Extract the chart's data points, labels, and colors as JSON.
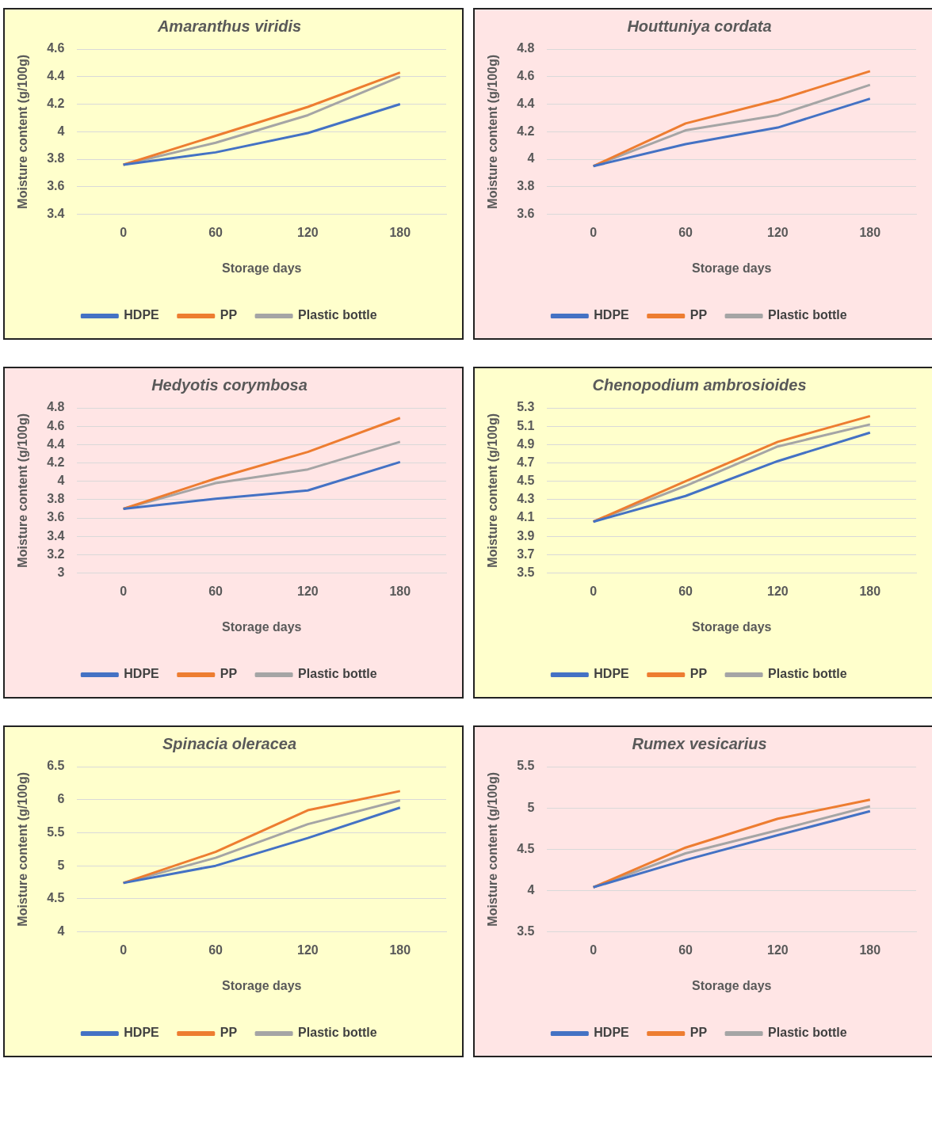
{
  "chart_data": [
    {
      "type": "line",
      "title": "Amaranthus viridis",
      "xlabel": "Storage days",
      "ylabel": "Moisture content (g/100g)",
      "categories": [
        "0",
        "60",
        "120",
        "180"
      ],
      "ylim": [
        3.4,
        4.6
      ],
      "yticks": [
        3.4,
        3.6,
        3.8,
        4,
        4.2,
        4.4,
        4.6
      ],
      "grid": "y",
      "legend": "bottom",
      "marker": "none",
      "series": [
        {
          "name": "HDPE",
          "color": "#4472c4",
          "values": [
            3.76,
            3.85,
            3.99,
            4.2
          ]
        },
        {
          "name": "PP",
          "color": "#ed7d31",
          "values": [
            3.76,
            3.97,
            4.18,
            4.43
          ]
        },
        {
          "name": "Plastic bottle",
          "color": "#a5a5a5",
          "values": [
            3.76,
            3.92,
            4.12,
            4.4
          ]
        }
      ]
    },
    {
      "type": "line",
      "title": "Houttuniya cordata",
      "xlabel": "Storage days",
      "ylabel": "Moisture content (g/100g)",
      "categories": [
        "0",
        "60",
        "120",
        "180"
      ],
      "ylim": [
        3.6,
        4.8
      ],
      "yticks": [
        3.6,
        3.8,
        4,
        4.2,
        4.4,
        4.6,
        4.8
      ],
      "grid": "y",
      "legend": "bottom",
      "marker": "none",
      "series": [
        {
          "name": "HDPE",
          "color": "#4472c4",
          "values": [
            3.95,
            4.11,
            4.23,
            4.44
          ]
        },
        {
          "name": "PP",
          "color": "#ed7d31",
          "values": [
            3.95,
            4.26,
            4.43,
            4.64
          ]
        },
        {
          "name": "Plastic bottle",
          "color": "#a5a5a5",
          "values": [
            3.95,
            4.21,
            4.32,
            4.54
          ]
        }
      ]
    },
    {
      "type": "line",
      "title": "Hedyotis corymbosa",
      "xlabel": "Storage days",
      "ylabel": "Moisture content (g/100g)",
      "categories": [
        "0",
        "60",
        "120",
        "180"
      ],
      "ylim": [
        3,
        4.8
      ],
      "yticks": [
        3,
        3.2,
        3.4,
        3.6,
        3.8,
        4,
        4.2,
        4.4,
        4.6,
        4.8
      ],
      "grid": "y",
      "legend": "bottom",
      "marker": "none",
      "series": [
        {
          "name": "HDPE",
          "color": "#4472c4",
          "values": [
            3.7,
            3.81,
            3.9,
            4.21
          ]
        },
        {
          "name": "PP",
          "color": "#ed7d31",
          "values": [
            3.7,
            4.03,
            4.32,
            4.69
          ]
        },
        {
          "name": "Plastic bottle",
          "color": "#a5a5a5",
          "values": [
            3.7,
            3.98,
            4.13,
            4.43
          ]
        }
      ]
    },
    {
      "type": "line",
      "title": "Chenopodium ambrosioides",
      "xlabel": "Storage days",
      "ylabel": "Moisture content (g/100g)",
      "categories": [
        "0",
        "60",
        "120",
        "180"
      ],
      "ylim": [
        3.5,
        5.3
      ],
      "yticks": [
        3.5,
        3.7,
        3.9,
        4.1,
        4.3,
        4.5,
        4.7,
        4.9,
        5.1,
        5.3
      ],
      "grid": "y",
      "legend": "bottom",
      "marker": "none",
      "series": [
        {
          "name": "HDPE",
          "color": "#4472c4",
          "values": [
            4.06,
            4.34,
            4.72,
            5.03
          ]
        },
        {
          "name": "PP",
          "color": "#ed7d31",
          "values": [
            4.06,
            4.5,
            4.93,
            5.21
          ]
        },
        {
          "name": "Plastic bottle",
          "color": "#a5a5a5",
          "values": [
            4.06,
            4.45,
            4.88,
            5.12
          ]
        }
      ]
    },
    {
      "type": "line",
      "title": "Spinacia oleracea",
      "xlabel": "Storage days",
      "ylabel": "Moisture content (g/100g)",
      "categories": [
        "0",
        "60",
        "120",
        "180"
      ],
      "ylim": [
        4,
        6.5
      ],
      "yticks": [
        4,
        4.5,
        5,
        5.5,
        6,
        6.5
      ],
      "grid": "y",
      "legend": "bottom",
      "marker": "none",
      "series": [
        {
          "name": "HDPE",
          "color": "#4472c4",
          "values": [
            4.74,
            5.0,
            5.42,
            5.88
          ]
        },
        {
          "name": "PP",
          "color": "#ed7d31",
          "values": [
            4.74,
            5.21,
            5.84,
            6.13
          ]
        },
        {
          "name": "Plastic bottle",
          "color": "#a5a5a5",
          "values": [
            4.74,
            5.12,
            5.63,
            5.99
          ]
        }
      ]
    },
    {
      "type": "line",
      "title": "Rumex vesicarius",
      "xlabel": "Storage days",
      "ylabel": "Moisture content (g/100g)",
      "categories": [
        "0",
        "60",
        "120",
        "180"
      ],
      "ylim": [
        3.5,
        5.5
      ],
      "yticks": [
        3.5,
        4,
        4.5,
        5,
        5.5
      ],
      "grid": "y",
      "legend": "bottom",
      "marker": "none",
      "series": [
        {
          "name": "HDPE",
          "color": "#4472c4",
          "values": [
            4.04,
            4.37,
            4.67,
            4.96
          ]
        },
        {
          "name": "PP",
          "color": "#ed7d31",
          "values": [
            4.04,
            4.52,
            4.87,
            5.1
          ]
        },
        {
          "name": "Plastic bottle",
          "color": "#a5a5a5",
          "values": [
            4.04,
            4.45,
            4.73,
            5.02
          ]
        }
      ]
    }
  ]
}
